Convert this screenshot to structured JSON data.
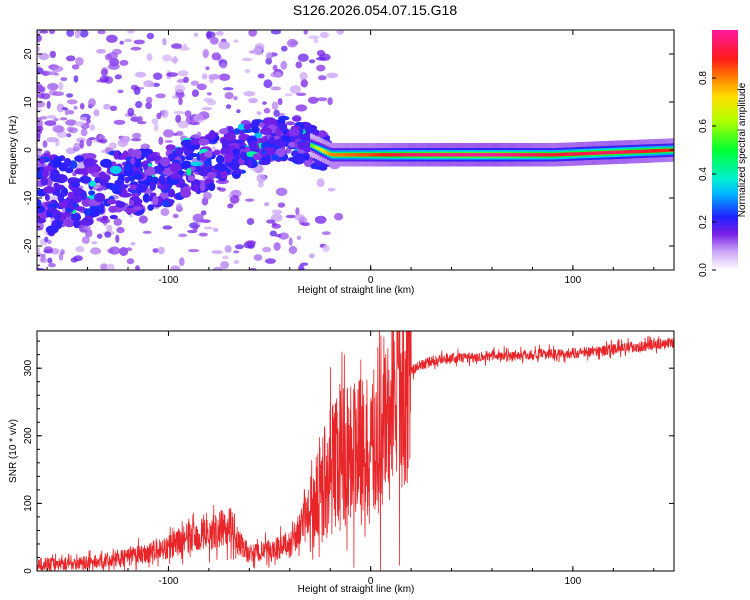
{
  "title": "S126.2026.054.07.15.G18",
  "chart_data": [
    {
      "type": "heatmap",
      "xlabel": "Height of straight line (km)",
      "ylabel": "Frequency (Hz)",
      "xlim": [
        -165,
        150
      ],
      "ylim": [
        -25,
        25
      ],
      "x_ticks": [
        -100,
        0,
        100
      ],
      "y_ticks": [
        -20,
        -10,
        0,
        10,
        20
      ],
      "colorbar": {
        "label": "Normalized spectral amplitude",
        "range": [
          0.0,
          1.0
        ],
        "ticks": [
          0.0,
          0.2,
          0.4,
          0.6,
          0.8
        ]
      },
      "ridge": {
        "x": [
          -165,
          -140,
          -120,
          -100,
          -80,
          -60,
          -45,
          -30,
          -25,
          -20,
          0,
          20,
          60,
          90,
          120,
          150
        ],
        "freq": [
          -10,
          -8.5,
          -7,
          -5,
          -2.5,
          1,
          2.5,
          1,
          0,
          -1,
          -1,
          -1,
          -1,
          -1,
          -0.5,
          0
        ],
        "amplitude": [
          0.2,
          0.22,
          0.28,
          0.35,
          0.4,
          0.45,
          0.5,
          0.55,
          0.7,
          0.8,
          0.85,
          0.95,
          1.0,
          0.9,
          0.95,
          0.85
        ]
      }
    },
    {
      "type": "line",
      "xlabel": "Height of straight line (km)",
      "ylabel": "SNR (10 * v/v)",
      "xlim": [
        -165,
        150
      ],
      "ylim": [
        0,
        355
      ],
      "x_ticks": [
        -100,
        0,
        100
      ],
      "y_ticks": [
        0,
        100,
        200,
        300
      ],
      "series": [
        {
          "name": "SNR",
          "color": "#e8262a",
          "x": [
            -165,
            -140,
            -120,
            -100,
            -90,
            -80,
            -75,
            -70,
            -65,
            -60,
            -50,
            -40,
            -35,
            -30,
            -25,
            -20,
            -15,
            -10,
            -5,
            0,
            5,
            10,
            15,
            20,
            25,
            30,
            40,
            60,
            80,
            100,
            120,
            150
          ],
          "y": [
            10,
            12,
            20,
            35,
            50,
            55,
            60,
            70,
            40,
            25,
            30,
            40,
            60,
            90,
            120,
            150,
            170,
            180,
            175,
            180,
            200,
            230,
            270,
            295,
            305,
            310,
            315,
            318,
            320,
            322,
            328,
            338
          ]
        }
      ]
    }
  ],
  "colors": {
    "line": "#e8262a",
    "axis": "#000000"
  }
}
